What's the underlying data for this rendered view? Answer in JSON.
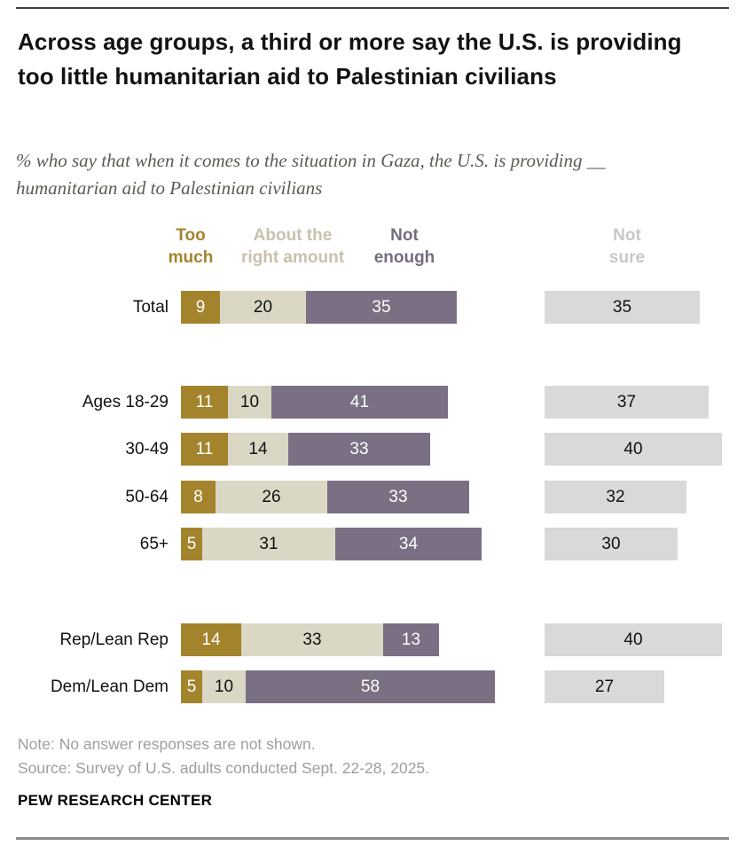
{
  "header": {
    "title": "Across age groups, a third or more say the U.S. is providing too little humanitarian aid to Palestinian civilians",
    "subtitle": "% who say that when it comes to the situation in Gaza, the U.S. is providing __ humanitarian aid to Palestinian civilians"
  },
  "legend": {
    "too_much": [
      "Too",
      "much"
    ],
    "about_right": [
      "About the",
      "right amount"
    ],
    "not_enough": [
      "Not",
      "enough"
    ],
    "not_sure": [
      "Not",
      "sure"
    ]
  },
  "chart_data": {
    "type": "bar",
    "orientation": "horizontal",
    "stacked": true,
    "unit": "percent of U.S. adults",
    "series_names": [
      "Too much",
      "About the right amount",
      "Not enough",
      "Not sure"
    ],
    "colors": {
      "too_much": "#A3842C",
      "about_right": "#DBD7C5",
      "not_enough": "#7B7083",
      "not_sure": "#D9D9D9"
    },
    "rows": [
      {
        "label": "Total",
        "group": "total",
        "too_much": 9,
        "about_right": 20,
        "not_enough": 35,
        "not_sure": 35
      },
      {
        "label": "Ages 18-29",
        "group": "age",
        "too_much": 11,
        "about_right": 10,
        "not_enough": 41,
        "not_sure": 37
      },
      {
        "label": "30-49",
        "group": "age",
        "too_much": 11,
        "about_right": 14,
        "not_enough": 33,
        "not_sure": 40
      },
      {
        "label": "50-64",
        "group": "age",
        "too_much": 8,
        "about_right": 26,
        "not_enough": 33,
        "not_sure": 32
      },
      {
        "label": "65+",
        "group": "age",
        "too_much": 5,
        "about_right": 31,
        "not_enough": 34,
        "not_sure": 30
      },
      {
        "label": "Rep/Lean Rep",
        "group": "party",
        "too_much": 14,
        "about_right": 33,
        "not_enough": 13,
        "not_sure": 40
      },
      {
        "label": "Dem/Lean Dem",
        "group": "party",
        "too_much": 5,
        "about_right": 10,
        "not_enough": 58,
        "not_sure": 27
      }
    ]
  },
  "footer": {
    "note": "Note: No answer responses are not shown.",
    "source": "Source: Survey of U.S. adults conducted Sept. 22-28, 2025.",
    "brand": "PEW RESEARCH CENTER"
  }
}
